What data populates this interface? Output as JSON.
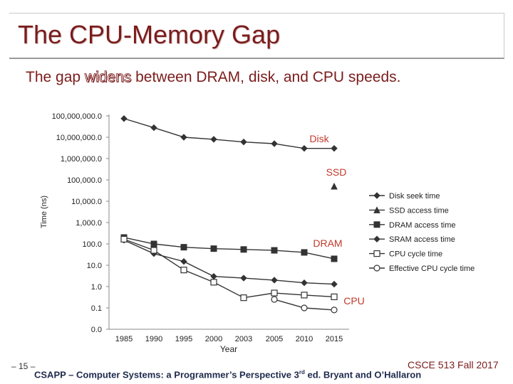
{
  "slide": {
    "title": "The CPU-Memory Gap",
    "subtitle_before": "The gap ",
    "subtitle_emph": "widens",
    "subtitle_after": " between DRAM, disk, and CPU speeds.",
    "page_number": "– 15 –",
    "course": "CSCE 513 Fall 2017",
    "credit_before": "CSAPP – Computer Systems: a Programmer’s Perspective 3",
    "credit_sup": "rd",
    "credit_after": " ed. Bryant and O’Hallaron"
  },
  "colors": {
    "title": "#7b1c1c",
    "annotation": "#c0392b",
    "series": "#333333",
    "credit": "#1f2a4d"
  },
  "chart_data": {
    "type": "line",
    "title": "",
    "xlabel": "Year",
    "ylabel": "Time (ns)",
    "yscale": "log",
    "ylim": [
      0.01,
      100000000
    ],
    "y_ticks": [
      0.01,
      0.1,
      1,
      10,
      100,
      1000,
      10000,
      100000,
      1000000,
      10000000,
      100000000
    ],
    "y_tick_labels": [
      "0.0",
      "0.1",
      "1.0",
      "10.0",
      "100.0",
      "1,000.0",
      "10,000.0",
      "100,000.0",
      "1,000,000.0",
      "10,000,000.0",
      "100,000,000.0"
    ],
    "categories": [
      "1985",
      "1990",
      "1995",
      "2000",
      "2003",
      "2005",
      "2010",
      "2015"
    ],
    "grid": false,
    "legend_position": "right",
    "series": [
      {
        "name": "Disk seek time",
        "marker": "diamond",
        "values": [
          75000000,
          28000000,
          10000000,
          8000000,
          6000000,
          5000000,
          3000000,
          3000000
        ]
      },
      {
        "name": "SSD access time",
        "marker": "triangle",
        "values": [
          null,
          null,
          null,
          null,
          null,
          null,
          null,
          50000
        ]
      },
      {
        "name": "DRAM access time",
        "marker": "square-filled",
        "values": [
          200,
          100,
          70,
          60,
          55,
          50,
          40,
          20
        ]
      },
      {
        "name": "SRAM access time",
        "marker": "diamond",
        "values": [
          150,
          35,
          15,
          3,
          2.5,
          2,
          1.5,
          1.3
        ]
      },
      {
        "name": "CPU cycle time",
        "marker": "square-open",
        "values": [
          166,
          50,
          6,
          1.6,
          0.3,
          0.5,
          0.4,
          0.33
        ]
      },
      {
        "name": "Effective CPU cycle time",
        "marker": "circle-open",
        "values": [
          null,
          null,
          null,
          null,
          null,
          0.25,
          0.1,
          0.08
        ]
      }
    ],
    "annotations": [
      {
        "text": "Disk",
        "near_series": "Disk seek time"
      },
      {
        "text": "SSD",
        "near_series": "SSD access time"
      },
      {
        "text": "DRAM",
        "near_series": "DRAM access time"
      },
      {
        "text": "CPU",
        "near_series": "Effective CPU cycle time"
      }
    ]
  }
}
